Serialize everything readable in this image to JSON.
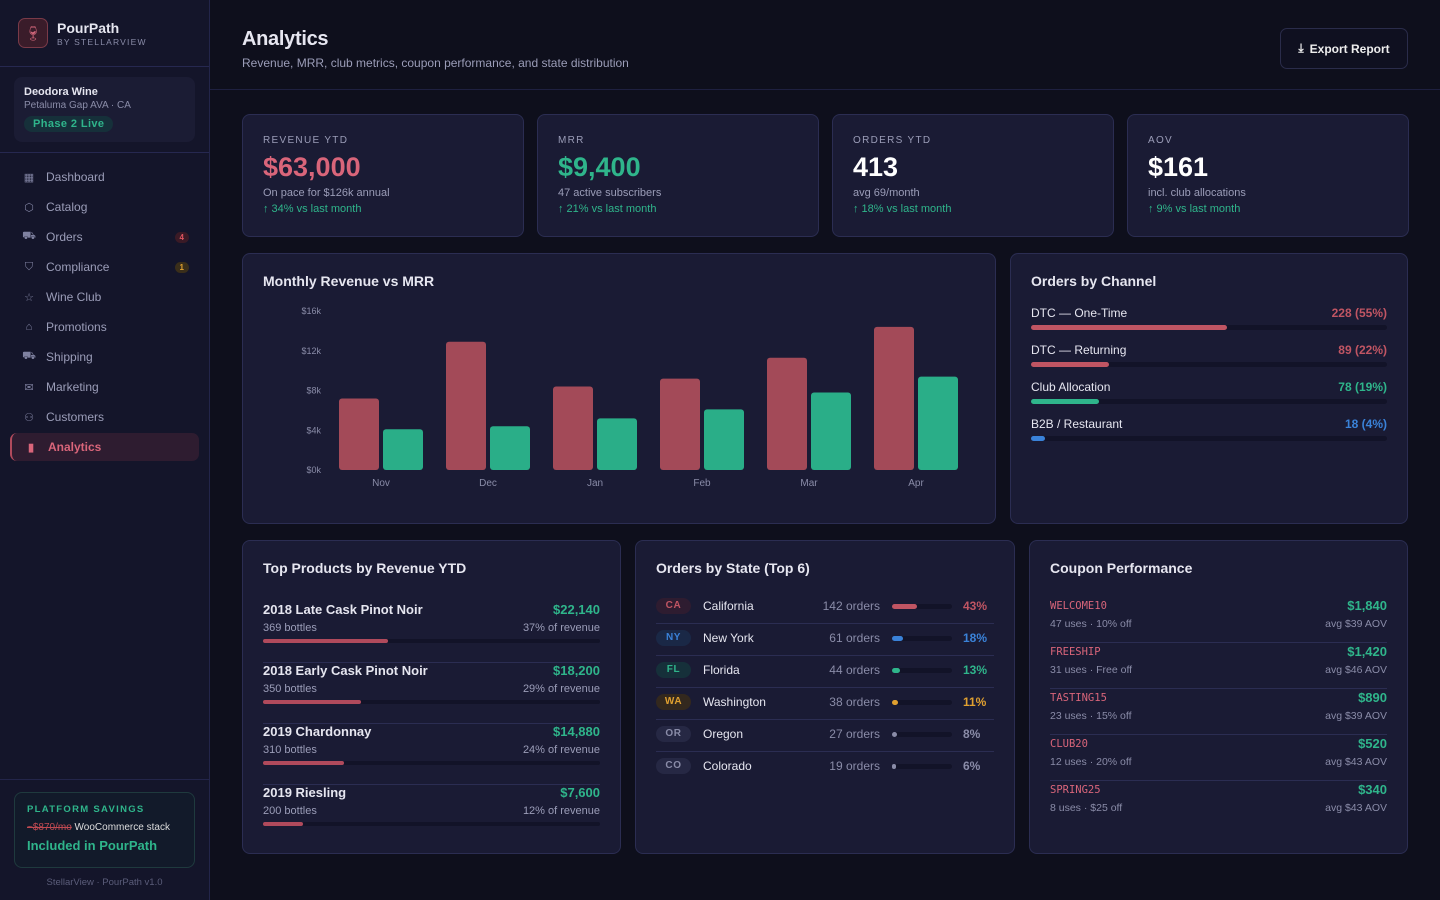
{
  "brand": {
    "name": "PourPath",
    "sub": "BY STELLARVIEW"
  },
  "org": {
    "name": "Deodora Wine",
    "location": "Petaluma Gap AVA · CA",
    "phase": "Phase 2 Live"
  },
  "nav": [
    {
      "label": "Dashboard",
      "icon": "grid-icon",
      "glyph": "▦"
    },
    {
      "label": "Catalog",
      "icon": "box-icon",
      "glyph": "⬡"
    },
    {
      "label": "Orders",
      "icon": "cart-icon",
      "glyph": "⛟",
      "badge": "4",
      "badge_color": "#e05560",
      "badge_bg": "#3a1a26"
    },
    {
      "label": "Compliance",
      "icon": "shield-icon",
      "glyph": "⛉",
      "badge": "1",
      "badge_color": "#e0a030",
      "badge_bg": "#3a2e1a"
    },
    {
      "label": "Wine Club",
      "icon": "star-icon",
      "glyph": "☆"
    },
    {
      "label": "Promotions",
      "icon": "tag-icon",
      "glyph": "⌂"
    },
    {
      "label": "Shipping",
      "icon": "truck-icon",
      "glyph": "⛟"
    },
    {
      "label": "Marketing",
      "icon": "mail-icon",
      "glyph": "✉"
    },
    {
      "label": "Customers",
      "icon": "users-icon",
      "glyph": "⚇"
    },
    {
      "label": "Analytics",
      "icon": "bar-chart-icon",
      "glyph": "▮",
      "active": true
    }
  ],
  "savings": {
    "title": "PLATFORM SAVINGS",
    "old": "~$870/mo",
    "stack": "WooCommerce stack",
    "included": "Included in PourPath"
  },
  "version": "StellarView · PourPath v1.0",
  "header": {
    "title": "Analytics",
    "subtitle": "Revenue, MRR, club metrics, coupon performance, and state distribution",
    "export": "Export Report"
  },
  "kpis": [
    {
      "label": "REVENUE YTD",
      "value": "$63,000",
      "sub": "On pace for $126k annual",
      "trend": "↑ 34% vs last month",
      "color": "#d9657a"
    },
    {
      "label": "MRR",
      "value": "$9,400",
      "sub": "47 active subscribers",
      "trend": "↑ 21% vs last month",
      "color": "#2fb58b"
    },
    {
      "label": "ORDERS YTD",
      "value": "413",
      "sub": "avg 69/month",
      "trend": "↑ 18% vs last month",
      "color": "#ffffff"
    },
    {
      "label": "AOV",
      "value": "$161",
      "sub": "incl. club allocations",
      "trend": "↑ 9% vs last month",
      "color": "#ffffff"
    }
  ],
  "chart_data": {
    "type": "bar",
    "title": "Monthly Revenue vs MRR",
    "categories": [
      "Nov",
      "Dec",
      "Jan",
      "Feb",
      "Mar",
      "Apr"
    ],
    "series": [
      {
        "name": "Revenue",
        "color": "#a34a58",
        "values": [
          7.2,
          12.9,
          8.4,
          9.2,
          11.3,
          14.4
        ]
      },
      {
        "name": "MRR",
        "color": "#2aae88",
        "values": [
          4.1,
          4.4,
          5.2,
          6.1,
          7.8,
          9.4
        ]
      }
    ],
    "yticks": [
      "$0k",
      "$4k",
      "$8k",
      "$12k",
      "$16k"
    ],
    "ylim": [
      0,
      16
    ],
    "yunit": "$k"
  },
  "channels": {
    "title": "Orders by Channel",
    "items": [
      {
        "label": "DTC — One-Time",
        "value": "228 (55%)",
        "pct": 55,
        "color": "#c05563"
      },
      {
        "label": "DTC — Returning",
        "value": "89 (22%)",
        "pct": 22,
        "color": "#c05563"
      },
      {
        "label": "Club Allocation",
        "value": "78 (19%)",
        "pct": 19,
        "color": "#2fb58b"
      },
      {
        "label": "B2B / Restaurant",
        "value": "18 (4%)",
        "pct": 4,
        "color": "#3a82d8"
      }
    ]
  },
  "products": {
    "title": "Top Products by Revenue YTD",
    "items": [
      {
        "name": "2018 Late Cask Pinot Noir",
        "revenue": "$22,140",
        "bottles": "369 bottles",
        "share": "37% of revenue",
        "pct": 37
      },
      {
        "name": "2018 Early Cask Pinot Noir",
        "revenue": "$18,200",
        "bottles": "350 bottles",
        "share": "29% of revenue",
        "pct": 29
      },
      {
        "name": "2019 Chardonnay",
        "revenue": "$14,880",
        "bottles": "310 bottles",
        "share": "24% of revenue",
        "pct": 24
      },
      {
        "name": "2019 Riesling",
        "revenue": "$7,600",
        "bottles": "200 bottles",
        "share": "12% of revenue",
        "pct": 12
      }
    ]
  },
  "states": {
    "title": "Orders by State (Top 6)",
    "items": [
      {
        "code": "CA",
        "name": "California",
        "orders": "142 orders",
        "pct_label": "43%",
        "pct": 43,
        "color": "#c05563",
        "bg": "#2e1c30"
      },
      {
        "code": "NY",
        "name": "New York",
        "orders": "61 orders",
        "pct_label": "18%",
        "pct": 18,
        "color": "#3a82d8",
        "bg": "#1a2846"
      },
      {
        "code": "FL",
        "name": "Florida",
        "orders": "44 orders",
        "pct_label": "13%",
        "pct": 13,
        "color": "#2fb58b",
        "bg": "#16303a"
      },
      {
        "code": "WA",
        "name": "Washington",
        "orders": "38 orders",
        "pct_label": "11%",
        "pct": 11,
        "color": "#e0a030",
        "bg": "#33281e"
      },
      {
        "code": "OR",
        "name": "Oregon",
        "orders": "27 orders",
        "pct_label": "8%",
        "pct": 8,
        "color": "#8a8ca8",
        "bg": "#262844"
      },
      {
        "code": "CO",
        "name": "Colorado",
        "orders": "19 orders",
        "pct_label": "6%",
        "pct": 6,
        "color": "#8a8ca8",
        "bg": "#262844"
      }
    ]
  },
  "coupons": {
    "title": "Coupon Performance",
    "items": [
      {
        "code": "WELCOME10",
        "uses": "47 uses · 10% off",
        "value": "$1,840",
        "aov": "avg $39 AOV"
      },
      {
        "code": "FREESHIP",
        "uses": "31 uses · Free off",
        "value": "$1,420",
        "aov": "avg $46 AOV"
      },
      {
        "code": "TASTING15",
        "uses": "23 uses · 15% off",
        "value": "$890",
        "aov": "avg $39 AOV"
      },
      {
        "code": "CLUB20",
        "uses": "12 uses · 20% off",
        "value": "$520",
        "aov": "avg $43 AOV"
      },
      {
        "code": "SPRING25",
        "uses": "8 uses · $25 off",
        "value": "$340",
        "aov": "avg $43 AOV"
      }
    ]
  }
}
